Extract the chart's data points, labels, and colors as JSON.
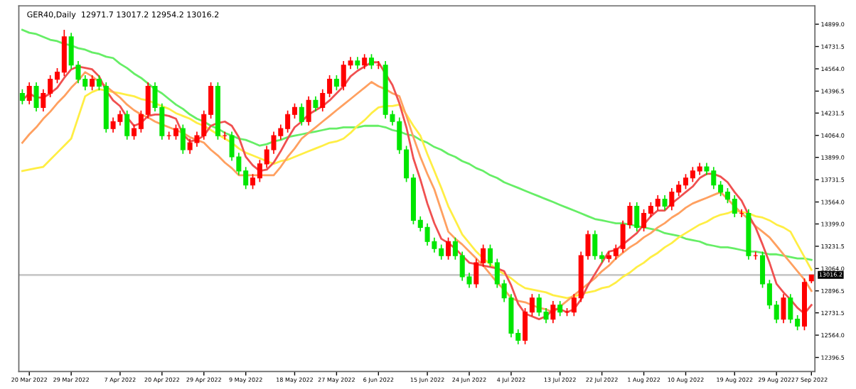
{
  "chart_data": {
    "type": "candlestick",
    "title": "GER40,Daily  12971.7 13017.2 12954.2 13016.2",
    "categories": [
      null,
      "20 Mar 2022",
      null,
      null,
      null,
      null,
      null,
      "29 Mar 2022",
      null,
      null,
      null,
      null,
      null,
      null,
      "7 Apr 2022",
      null,
      null,
      null,
      null,
      null,
      "20 Apr 2022",
      null,
      null,
      null,
      null,
      null,
      "29 Apr 2022",
      null,
      null,
      null,
      null,
      null,
      "9 May 2022",
      null,
      null,
      null,
      null,
      null,
      null,
      "18 May 2022",
      null,
      null,
      null,
      null,
      null,
      "27 May 2022",
      null,
      null,
      null,
      null,
      null,
      "6 Jun 2022",
      null,
      null,
      null,
      null,
      null,
      null,
      "15 Jun 2022",
      null,
      null,
      null,
      null,
      null,
      "24 Jun 2022",
      null,
      null,
      null,
      null,
      null,
      "4 Jul 2022",
      null,
      null,
      null,
      null,
      null,
      null,
      "13 Jul 2022",
      null,
      null,
      null,
      null,
      null,
      "22 Jul 2022",
      null,
      null,
      null,
      null,
      null,
      "1 Aug 2022",
      null,
      null,
      null,
      null,
      null,
      "10 Aug 2022",
      null,
      null,
      null,
      null,
      null,
      null,
      "19 Aug 2022",
      null,
      null,
      null,
      null,
      null,
      "29 Aug 2022",
      null,
      null,
      null,
      null,
      "7 Sep 2022"
    ],
    "ohlc": [
      [
        14380,
        14410,
        14297,
        14327
      ],
      [
        14327,
        14463,
        14297,
        14433
      ],
      [
        14433,
        14463,
        14244,
        14274
      ],
      [
        14274,
        14410,
        14244,
        14380
      ],
      [
        14380,
        14516,
        14350,
        14486
      ],
      [
        14486,
        14569,
        14456,
        14539
      ],
      [
        14539,
        14857,
        14509,
        14804
      ],
      [
        14804,
        14834,
        14562,
        14592
      ],
      [
        14592,
        14622,
        14456,
        14486
      ],
      [
        14486,
        14516,
        14403,
        14433
      ],
      [
        14433,
        14516,
        14403,
        14486
      ],
      [
        14486,
        14516,
        14403,
        14433
      ],
      [
        14433,
        14463,
        14085,
        14115
      ],
      [
        14115,
        14198,
        14085,
        14168
      ],
      [
        14168,
        14251,
        14138,
        14221
      ],
      [
        14221,
        14251,
        14032,
        14062
      ],
      [
        14062,
        14145,
        14032,
        14115
      ],
      [
        14115,
        14251,
        14085,
        14221
      ],
      [
        14221,
        14463,
        14191,
        14433
      ],
      [
        14433,
        14463,
        14244,
        14274
      ],
      [
        14274,
        14304,
        14032,
        14062
      ],
      [
        14062,
        14092,
        14032,
        14062
      ],
      [
        14062,
        14145,
        14032,
        14115
      ],
      [
        14115,
        14145,
        13926,
        13956
      ],
      [
        13956,
        14039,
        13926,
        14009
      ],
      [
        14009,
        14092,
        13979,
        14062
      ],
      [
        14062,
        14251,
        14032,
        14221
      ],
      [
        14221,
        14463,
        14191,
        14433
      ],
      [
        14433,
        14463,
        14032,
        14062
      ],
      [
        14062,
        14092,
        14032,
        14062
      ],
      [
        14062,
        14092,
        13873,
        13903
      ],
      [
        13903,
        13933,
        13767,
        13797
      ],
      [
        13797,
        13827,
        13661,
        13691
      ],
      [
        13691,
        13774,
        13661,
        13744
      ],
      [
        13744,
        13880,
        13714,
        13850
      ],
      [
        13850,
        13986,
        13820,
        13956
      ],
      [
        13956,
        14092,
        13926,
        14062
      ],
      [
        14062,
        14145,
        14032,
        14115
      ],
      [
        14115,
        14251,
        14085,
        14221
      ],
      [
        14221,
        14304,
        14191,
        14274
      ],
      [
        14274,
        14304,
        14138,
        14168
      ],
      [
        14168,
        14357,
        14138,
        14327
      ],
      [
        14327,
        14357,
        14244,
        14274
      ],
      [
        14274,
        14410,
        14244,
        14380
      ],
      [
        14380,
        14516,
        14350,
        14486
      ],
      [
        14486,
        14516,
        14403,
        14433
      ],
      [
        14433,
        14622,
        14403,
        14592
      ],
      [
        14592,
        14653,
        14562,
        14623
      ],
      [
        14623,
        14653,
        14562,
        14592
      ],
      [
        14592,
        14675,
        14562,
        14645
      ],
      [
        14645,
        14675,
        14562,
        14592
      ],
      [
        14592,
        14622,
        14562,
        14592
      ],
      [
        14592,
        14622,
        14191,
        14221
      ],
      [
        14221,
        14251,
        14138,
        14168
      ],
      [
        14168,
        14198,
        13926,
        13956
      ],
      [
        13956,
        13986,
        13714,
        13744
      ],
      [
        13744,
        13774,
        13396,
        13426
      ],
      [
        13426,
        13456,
        13343,
        13373
      ],
      [
        13373,
        13403,
        13237,
        13267
      ],
      [
        13267,
        13297,
        13184,
        13214
      ],
      [
        13214,
        13244,
        13131,
        13161
      ],
      [
        13161,
        13297,
        13131,
        13267
      ],
      [
        13267,
        13297,
        13131,
        13161
      ],
      [
        13161,
        13191,
        12972,
        13002
      ],
      [
        13002,
        13032,
        12919,
        12949
      ],
      [
        12949,
        13138,
        12919,
        13108
      ],
      [
        13108,
        13244,
        13078,
        13214
      ],
      [
        13214,
        13244,
        13078,
        13108
      ],
      [
        13108,
        13138,
        12919,
        12949
      ],
      [
        12949,
        12979,
        12813,
        12843
      ],
      [
        12843,
        12873,
        12548,
        12578
      ],
      [
        12578,
        12608,
        12495,
        12525
      ],
      [
        12525,
        12767,
        12495,
        12737
      ],
      [
        12737,
        12873,
        12707,
        12843
      ],
      [
        12843,
        12873,
        12707,
        12737
      ],
      [
        12737,
        12767,
        12654,
        12684
      ],
      [
        12684,
        12820,
        12654,
        12790
      ],
      [
        12790,
        12820,
        12707,
        12737
      ],
      [
        12737,
        12767,
        12707,
        12737
      ],
      [
        12737,
        12873,
        12707,
        12843
      ],
      [
        12843,
        13191,
        12813,
        13161
      ],
      [
        13161,
        13350,
        13131,
        13320
      ],
      [
        13320,
        13350,
        13131,
        13161
      ],
      [
        13161,
        13191,
        13110,
        13140
      ],
      [
        13140,
        13191,
        13110,
        13161
      ],
      [
        13161,
        13244,
        13131,
        13214
      ],
      [
        13214,
        13424,
        13184,
        13394
      ],
      [
        13394,
        13562,
        13364,
        13532
      ],
      [
        13532,
        13562,
        13343,
        13373
      ],
      [
        13373,
        13509,
        13343,
        13479
      ],
      [
        13479,
        13562,
        13449,
        13532
      ],
      [
        13532,
        13615,
        13502,
        13585
      ],
      [
        13585,
        13615,
        13502,
        13532
      ],
      [
        13532,
        13668,
        13502,
        13638
      ],
      [
        13638,
        13721,
        13608,
        13691
      ],
      [
        13691,
        13774,
        13661,
        13744
      ],
      [
        13744,
        13827,
        13714,
        13797
      ],
      [
        13797,
        13858,
        13767,
        13828
      ],
      [
        13828,
        13858,
        13767,
        13797
      ],
      [
        13797,
        13827,
        13661,
        13691
      ],
      [
        13691,
        13721,
        13608,
        13638
      ],
      [
        13638,
        13668,
        13555,
        13585
      ],
      [
        13585,
        13615,
        13449,
        13479
      ],
      [
        13479,
        13509,
        13449,
        13479
      ],
      [
        13479,
        13509,
        13131,
        13161
      ],
      [
        13161,
        13191,
        13131,
        13161
      ],
      [
        13161,
        13191,
        12919,
        12949
      ],
      [
        12949,
        12979,
        12760,
        12790
      ],
      [
        12790,
        12820,
        12654,
        12684
      ],
      [
        12684,
        12873,
        12654,
        12843
      ],
      [
        12843,
        12873,
        12654,
        12684
      ],
      [
        12684,
        12714,
        12601,
        12631
      ],
      [
        12631,
        12990,
        12601,
        12960
      ],
      [
        12971.7,
        13017.2,
        12954.2,
        13016.2
      ]
    ],
    "colors": [
      "#00e600",
      "#ff0000",
      "#00e600",
      "#ff0000",
      "#ff0000",
      "#ff0000",
      "#ff0000",
      "#00e600",
      "#00e600",
      "#00e600",
      "#ff0000",
      "#00e600",
      "#00e600",
      "#ff0000",
      "#ff0000",
      "#00e600",
      "#ff0000",
      "#ff0000",
      "#ff0000",
      "#00e600",
      "#00e600",
      "#ff0000",
      "#ff0000",
      "#00e600",
      "#ff0000",
      "#ff0000",
      "#ff0000",
      "#ff0000",
      "#00e600",
      "#ff0000",
      "#00e600",
      "#00e600",
      "#00e600",
      "#ff0000",
      "#ff0000",
      "#ff0000",
      "#ff0000",
      "#ff0000",
      "#ff0000",
      "#ff0000",
      "#00e600",
      "#ff0000",
      "#00e600",
      "#ff0000",
      "#ff0000",
      "#00e600",
      "#ff0000",
      "#ff0000",
      "#00e600",
      "#ff0000",
      "#00e600",
      "#ff0000",
      "#00e600",
      "#00e600",
      "#00e600",
      "#00e600",
      "#00e600",
      "#00e600",
      "#00e600",
      "#00e600",
      "#00e600",
      "#ff0000",
      "#00e600",
      "#00e600",
      "#00e600",
      "#ff0000",
      "#ff0000",
      "#00e600",
      "#00e600",
      "#00e600",
      "#00e600",
      "#00e600",
      "#ff0000",
      "#ff0000",
      "#00e600",
      "#00e600",
      "#ff0000",
      "#00e600",
      "#ff0000",
      "#ff0000",
      "#ff0000",
      "#ff0000",
      "#00e600",
      "#00e600",
      "#ff0000",
      "#ff0000",
      "#ff0000",
      "#ff0000",
      "#00e600",
      "#ff0000",
      "#ff0000",
      "#ff0000",
      "#00e600",
      "#ff0000",
      "#ff0000",
      "#ff0000",
      "#ff0000",
      "#ff0000",
      "#00e600",
      "#00e600",
      "#00e600",
      "#00e600",
      "#00e600",
      "#ff0000",
      "#00e600",
      "#ff0000",
      "#00e600",
      "#00e600",
      "#00e600",
      "#ff0000",
      "#00e600",
      "#00e600",
      "#ff0000",
      "#ff0000"
    ],
    "series": [
      {
        "type": "line",
        "color": "#66ee66",
        "values": [
          14857,
          14835,
          14825,
          14804,
          14782,
          14772,
          14751,
          14740,
          14719,
          14708,
          14687,
          14676,
          14655,
          14645,
          14602,
          14570,
          14528,
          14496,
          14454,
          14411,
          14380,
          14337,
          14295,
          14263,
          14221,
          14189,
          14168,
          14136,
          14115,
          14083,
          14062,
          14040,
          14030,
          14009,
          13987,
          13998,
          14019,
          14030,
          14051,
          14062,
          14072,
          14083,
          14093,
          14104,
          14115,
          14115,
          14125,
          14125,
          14125,
          14136,
          14136,
          14136,
          14125,
          14104,
          14093,
          14072,
          14062,
          14030,
          14009,
          13977,
          13956,
          13924,
          13903,
          13871,
          13850,
          13818,
          13797,
          13765,
          13744,
          13712,
          13691,
          13670,
          13648,
          13627,
          13606,
          13585,
          13564,
          13542,
          13521,
          13500,
          13479,
          13457,
          13436,
          13426,
          13415,
          13404,
          13404,
          13394,
          13383,
          13373,
          13362,
          13352,
          13330,
          13320,
          13309,
          13288,
          13277,
          13267,
          13245,
          13235,
          13224,
          13224,
          13214,
          13203,
          13192,
          13192,
          13182,
          13171,
          13171,
          13161,
          13150,
          13140,
          13140,
          13129
        ]
      },
      {
        "type": "line",
        "color": "#ffee44",
        "values": [
          13797,
          13807,
          13818,
          13828,
          13881,
          13934,
          13987,
          14040,
          14199,
          14358,
          14390,
          14411,
          14401,
          14390,
          14380,
          14369,
          14358,
          14337,
          14327,
          14305,
          14284,
          14263,
          14231,
          14210,
          14189,
          14157,
          14136,
          14104,
          14072,
          14040,
          14009,
          13966,
          13934,
          13913,
          13892,
          13871,
          13850,
          13871,
          13881,
          13903,
          13924,
          13945,
          13966,
          13987,
          14009,
          14019,
          14040,
          14083,
          14136,
          14178,
          14231,
          14274,
          14284,
          14284,
          14295,
          14221,
          14136,
          14062,
          13924,
          13797,
          13669,
          13532,
          13426,
          13320,
          13256,
          13192,
          13140,
          13097,
          13055,
          13023,
          12991,
          12949,
          12917,
          12906,
          12896,
          12885,
          12864,
          12853,
          12843,
          12853,
          12874,
          12885,
          12896,
          12917,
          12928,
          12959,
          13002,
          13034,
          13076,
          13108,
          13150,
          13182,
          13224,
          13256,
          13298,
          13330,
          13362,
          13394,
          13415,
          13447,
          13468,
          13479,
          13500,
          13489,
          13479,
          13457,
          13447,
          13426,
          13394,
          13373,
          13341,
          13245,
          13150,
          13055
        ]
      },
      {
        "type": "line",
        "color": "#ffa060",
        "values": [
          14009,
          14072,
          14125,
          14189,
          14242,
          14305,
          14358,
          14422,
          14475,
          14539,
          14507,
          14465,
          14433,
          14390,
          14348,
          14295,
          14253,
          14221,
          14199,
          14168,
          14146,
          14125,
          14104,
          14083,
          14051,
          14030,
          14009,
          13956,
          13913,
          13860,
          13818,
          13765,
          13765,
          13765,
          13765,
          13765,
          13765,
          13828,
          13903,
          13966,
          14040,
          14083,
          14125,
          14168,
          14210,
          14253,
          14295,
          14337,
          14380,
          14422,
          14465,
          14433,
          14411,
          14380,
          14358,
          14210,
          14051,
          13903,
          13775,
          13659,
          13500,
          13341,
          13288,
          13245,
          13192,
          13140,
          13086,
          13023,
          12959,
          12906,
          12843,
          12821,
          12811,
          12790,
          12769,
          12758,
          12737,
          12779,
          12821,
          12864,
          12906,
          12949,
          12991,
          13044,
          13086,
          13140,
          13182,
          13224,
          13256,
          13298,
          13330,
          13373,
          13405,
          13447,
          13479,
          13521,
          13553,
          13574,
          13595,
          13617,
          13638,
          13585,
          13532,
          13479,
          13436,
          13383,
          13341,
          13298,
          13235,
          13171,
          13108,
          13044,
          12981,
          12896
        ]
      },
      {
        "type": "line",
        "color": "#f05050",
        "values": [
          14327,
          14380,
          14348,
          14348,
          14380,
          14422,
          14496,
          14560,
          14581,
          14571,
          14560,
          14507,
          14401,
          14327,
          14284,
          14199,
          14136,
          14157,
          14210,
          14221,
          14221,
          14210,
          14189,
          14072,
          14019,
          14030,
          14062,
          14136,
          14157,
          14168,
          14136,
          14051,
          13903,
          13839,
          13797,
          13807,
          13860,
          13945,
          14040,
          14125,
          14168,
          14221,
          14253,
          14284,
          14327,
          14380,
          14433,
          14507,
          14549,
          14581,
          14613,
          14613,
          14528,
          14443,
          14305,
          14125,
          13892,
          13733,
          13553,
          13404,
          13288,
          13256,
          13214,
          13161,
          13108,
          13097,
          13086,
          13076,
          13065,
          13044,
          12938,
          12800,
          12726,
          12705,
          12684,
          12705,
          12758,
          12758,
          12737,
          12758,
          12832,
          12938,
          13023,
          13108,
          13192,
          13203,
          13245,
          13288,
          13330,
          13394,
          13457,
          13500,
          13500,
          13553,
          13595,
          13638,
          13680,
          13744,
          13775,
          13775,
          13754,
          13712,
          13638,
          13574,
          13468,
          13373,
          13245,
          13108,
          12949,
          12885,
          12832,
          12769,
          12726,
          12790
        ]
      }
    ],
    "ylim": [
      12291,
      15037
    ],
    "yticks": [
      12396.5,
      {
        "value": 12564,
        "label": "12564.0"
      },
      12731.5,
      12896.5,
      {
        "value": 13064,
        "label": "13064.0"
      },
      13231.5,
      {
        "value": 13399,
        "label": "13399.0"
      },
      {
        "value": 13564,
        "label": "13564.0"
      },
      13731.5,
      {
        "value": 13899,
        "label": "13899.0"
      },
      {
        "value": 14064,
        "label": "14064.0"
      },
      14231.5,
      14396.5,
      {
        "value": 14564,
        "label": "14564.0"
      },
      14731.5,
      {
        "value": 14899,
        "label": "14899.0"
      }
    ],
    "ref_lines": [
      {
        "axis": "y",
        "value": 13016.2,
        "label": "13016.2",
        "color": "#c8c8c8"
      }
    ],
    "grid": false
  }
}
